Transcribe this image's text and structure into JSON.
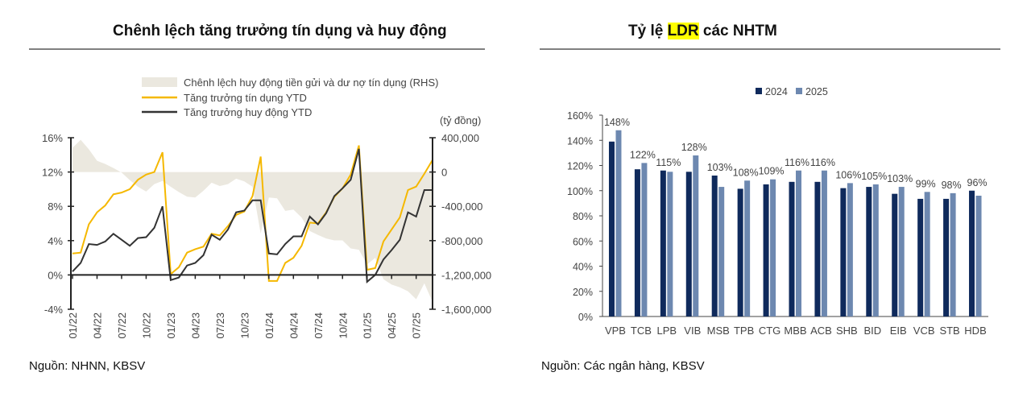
{
  "left": {
    "title": "Chênh lệch tăng trưởng tín dụng và huy động",
    "source": "Nguồn: NHNN, KBSV"
  },
  "right": {
    "title_pre": "Tỷ lệ ",
    "title_highlight": "LDR",
    "title_post": " các NHTM",
    "source": "Nguồn: Các ngân hàng, KBSV"
  },
  "chart_data": [
    {
      "type": "line",
      "title": "Chênh lệch tăng trưởng tín dụng và huy động",
      "rhs_unit_label": "(tỷ đồng)",
      "x": [
        "01/22",
        "02/22",
        "03/22",
        "04/22",
        "05/22",
        "06/22",
        "07/22",
        "08/22",
        "09/22",
        "10/22",
        "11/22",
        "12/22",
        "01/23",
        "02/23",
        "03/23",
        "04/23",
        "05/23",
        "06/23",
        "07/23",
        "08/23",
        "09/23",
        "10/23",
        "11/23",
        "12/23",
        "01/24",
        "02/24",
        "03/24",
        "04/24",
        "05/24",
        "06/24",
        "07/24",
        "08/24",
        "09/24",
        "10/24",
        "11/24",
        "12/24",
        "01/25",
        "02/25",
        "03/25",
        "04/25",
        "05/25",
        "06/25",
        "07/25",
        "08/25",
        "09/25"
      ],
      "x_tick_labels": [
        "01/22",
        "04/22",
        "07/22",
        "10/22",
        "01/23",
        "04/23",
        "07/23",
        "10/23",
        "01/24",
        "04/24",
        "07/24",
        "10/24",
        "01/25",
        "04/25",
        "07/25"
      ],
      "ylim": [
        -4,
        16
      ],
      "y_ticks": [
        "-4%",
        "0%",
        "4%",
        "8%",
        "12%",
        "16%"
      ],
      "y_tick_values": [
        -4,
        0,
        4,
        8,
        12,
        16
      ],
      "y2lim": [
        -1600000,
        400000
      ],
      "y2_ticks": [
        "-1,600,000",
        "-1,200,000",
        "-800,000",
        "-400,000",
        "0",
        "400,000"
      ],
      "legend_position": "top",
      "series": [
        {
          "name": "Chênh lệch huy động tiền gửi và dư nợ tín dụng (RHS)",
          "type": "area",
          "axis": "right",
          "color": "#ebe8df",
          "values": [
            281000,
            375000,
            265000,
            131000,
            94000,
            47000,
            -6000,
            -94000,
            -172000,
            -228000,
            -141000,
            -103000,
            -172000,
            -234000,
            -288000,
            -297000,
            -219000,
            -125000,
            -163000,
            -141000,
            -78000,
            -109000,
            -172000,
            -719000,
            -297000,
            -306000,
            -453000,
            -438000,
            -531000,
            -688000,
            -734000,
            -775000,
            -797000,
            -797000,
            -891000,
            -906000,
            -1078000,
            -1000000,
            -1250000,
            -1313000,
            -1344000,
            -1391000,
            -1484000,
            -1297000,
            -1516000
          ]
        },
        {
          "name": "Tăng trưởng tín dụng YTD",
          "type": "line",
          "axis": "left",
          "color": "#f5b800",
          "values": [
            2.5,
            2.6,
            5.9,
            7.3,
            8.1,
            9.4,
            9.6,
            10.0,
            11.1,
            11.7,
            12.0,
            14.3,
            0.1,
            0.9,
            2.6,
            3.0,
            3.3,
            4.8,
            4.6,
            5.7,
            7.0,
            7.4,
            9.2,
            13.8,
            -0.7,
            -0.7,
            1.4,
            2.0,
            3.4,
            6.1,
            6.0,
            7.3,
            9.1,
            10.1,
            11.7,
            15.1,
            0.6,
            0.8,
            3.9,
            5.3,
            6.7,
            9.9,
            10.3,
            11.8,
            13.4
          ]
        },
        {
          "name": "Tăng trưởng huy động YTD",
          "type": "line",
          "axis": "left",
          "color": "#333333",
          "values": [
            0.4,
            1.4,
            3.6,
            3.5,
            3.9,
            4.8,
            4.1,
            3.4,
            4.3,
            4.4,
            5.5,
            8.0,
            -0.6,
            -0.3,
            1.1,
            1.4,
            2.3,
            4.7,
            4.1,
            5.3,
            7.3,
            7.5,
            8.7,
            8.7,
            2.5,
            2.4,
            3.6,
            4.5,
            4.5,
            6.8,
            5.9,
            7.2,
            9.2,
            10.1,
            11.1,
            14.7,
            -0.8,
            0.0,
            1.8,
            2.9,
            4.1,
            7.3,
            6.8,
            9.9,
            9.9
          ]
        }
      ]
    },
    {
      "type": "bar",
      "title": "Tỷ lệ LDR các NHTM",
      "categories": [
        "VPB",
        "TCB",
        "LPB",
        "VIB",
        "MSB",
        "TPB",
        "CTG",
        "MBB",
        "ACB",
        "SHB",
        "BID",
        "EIB",
        "VCB",
        "STB",
        "HDB"
      ],
      "ylim": [
        0,
        160
      ],
      "y_ticks": [
        "0%",
        "20%",
        "40%",
        "60%",
        "80%",
        "100%",
        "120%",
        "140%",
        "160%"
      ],
      "y_tick_values": [
        0,
        20,
        40,
        60,
        80,
        100,
        120,
        140,
        160
      ],
      "legend_position": "top-right",
      "series": [
        {
          "name": "2024",
          "color": "#0f2a5c",
          "values": [
            139,
            117,
            116,
            115,
            112,
            101.5,
            105,
            107,
            107,
            102,
            103,
            97.5,
            93.5,
            93.5,
            100
          ]
        },
        {
          "name": "2025",
          "color": "#6d88b0",
          "values": [
            148,
            122,
            115,
            128,
            103,
            108,
            109,
            116,
            116,
            106,
            105,
            103,
            99,
            98,
            96
          ]
        }
      ],
      "data_labels": [
        "148%",
        "122%",
        "115%",
        "128%",
        "103%",
        "108%",
        "109%",
        "116%",
        "116%",
        "106%",
        "105%",
        "103%",
        "99%",
        "98%",
        "96%"
      ]
    }
  ]
}
